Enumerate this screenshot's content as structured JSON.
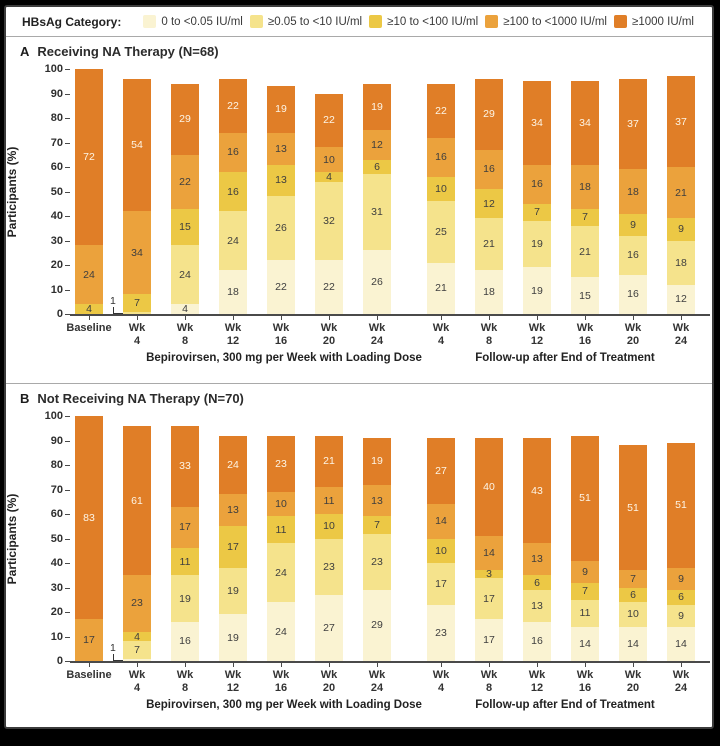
{
  "legend": {
    "title": "HBsAg Category:",
    "items": [
      {
        "label": "0 to <0.05 IU/ml",
        "color": "#FAF3D2"
      },
      {
        "label": "≥0.05 to <10 IU/ml",
        "color": "#F5E38C"
      },
      {
        "label": "≥10 to <100 IU/ml",
        "color": "#ECC845"
      },
      {
        "label": "≥100 to <1000 IU/ml",
        "color": "#EBA23C"
      },
      {
        "label": "≥1000 IU/ml",
        "color": "#E07E27"
      }
    ]
  },
  "chart_data": [
    {
      "type": "bar",
      "stacked": true,
      "panel_letter": "A",
      "title": "Receiving NA Therapy (N=68)",
      "ylabel": "Participants (%)",
      "ylim": [
        0,
        100
      ],
      "yticks": [
        0,
        10,
        20,
        30,
        40,
        50,
        60,
        70,
        80,
        90,
        100
      ],
      "grid": false,
      "legend_position": "top",
      "categories": [
        "Baseline",
        "Wk 4",
        "Wk 8",
        "Wk 12",
        "Wk 16",
        "Wk 20",
        "Wk 24",
        "Wk 4",
        "Wk 8",
        "Wk 12",
        "Wk 16",
        "Wk 20",
        "Wk 24"
      ],
      "series": [
        {
          "name": "0 to <0.05 IU/ml",
          "values": [
            0,
            0,
            4,
            18,
            22,
            22,
            26,
            21,
            18,
            19,
            15,
            16,
            12
          ]
        },
        {
          "name": "≥0.05 to <10 IU/ml",
          "values": [
            0,
            1,
            24,
            24,
            26,
            32,
            31,
            25,
            21,
            19,
            21,
            16,
            18
          ]
        },
        {
          "name": "≥10 to <100 IU/ml",
          "values": [
            4,
            7,
            15,
            16,
            13,
            4,
            6,
            10,
            12,
            7,
            7,
            9,
            9
          ]
        },
        {
          "name": "≥100 to <1000 IU/ml",
          "values": [
            24,
            34,
            22,
            16,
            13,
            10,
            12,
            16,
            16,
            16,
            18,
            18,
            21
          ]
        },
        {
          "name": "≥1000 IU/ml",
          "values": [
            72,
            54,
            29,
            22,
            19,
            22,
            19,
            22,
            29,
            34,
            34,
            37,
            37
          ]
        }
      ],
      "annotations": [
        {
          "bar_index": 1,
          "text": "1"
        }
      ],
      "group_labels": [
        "Bepirovirsen, 300 mg per Week with Loading Dose",
        "Follow-up after End of Treatment"
      ]
    },
    {
      "type": "bar",
      "stacked": true,
      "panel_letter": "B",
      "title": "Not Receiving NA Therapy (N=70)",
      "ylabel": "Participants (%)",
      "ylim": [
        0,
        100
      ],
      "yticks": [
        0,
        10,
        20,
        30,
        40,
        50,
        60,
        70,
        80,
        90,
        100
      ],
      "grid": false,
      "legend_position": "top",
      "categories": [
        "Baseline",
        "Wk 4",
        "Wk 8",
        "Wk 12",
        "Wk 16",
        "Wk 20",
        "Wk 24",
        "Wk 4",
        "Wk 8",
        "Wk 12",
        "Wk 16",
        "Wk 20",
        "Wk 24"
      ],
      "series": [
        {
          "name": "0 to <0.05 IU/ml",
          "values": [
            0,
            1,
            16,
            19,
            24,
            27,
            29,
            23,
            17,
            16,
            14,
            14,
            14
          ]
        },
        {
          "name": "≥0.05 to <10 IU/ml",
          "values": [
            0,
            7,
            19,
            19,
            24,
            23,
            23,
            17,
            17,
            13,
            11,
            10,
            9
          ]
        },
        {
          "name": "≥10 to <100 IU/ml",
          "values": [
            0,
            4,
            11,
            17,
            11,
            10,
            7,
            10,
            3,
            6,
            7,
            6,
            6
          ]
        },
        {
          "name": "≥100 to <1000 IU/ml",
          "values": [
            17,
            23,
            17,
            13,
            10,
            11,
            13,
            14,
            14,
            13,
            9,
            7,
            9
          ]
        },
        {
          "name": "≥1000 IU/ml",
          "values": [
            83,
            61,
            33,
            24,
            23,
            21,
            19,
            27,
            40,
            43,
            51,
            51,
            51
          ]
        }
      ],
      "annotations": [
        {
          "bar_index": 1,
          "text": "1"
        }
      ],
      "group_labels": [
        "Bepirovirsen, 300 mg per Week with Loading Dose",
        "Follow-up after End of Treatment"
      ]
    }
  ]
}
